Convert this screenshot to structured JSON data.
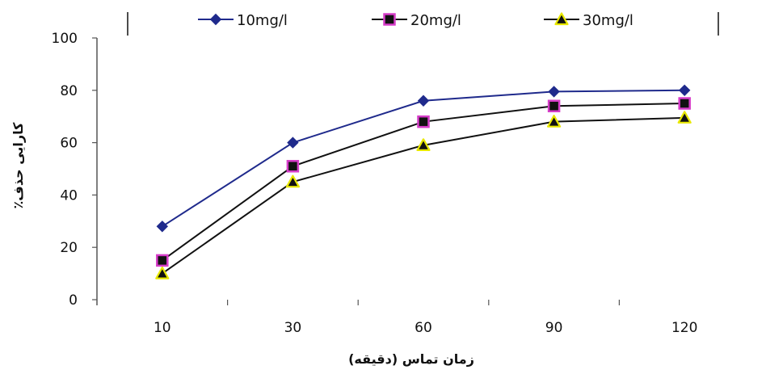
{
  "chart_data": {
    "type": "line",
    "title": "",
    "xlabel": "زمان تماس (دقیقه)",
    "ylabel": "کارایی حذف٪",
    "categories": [
      "10",
      "30",
      "60",
      "90",
      "120"
    ],
    "ylim": [
      0,
      100
    ],
    "yticks": [
      "0",
      "20",
      "40",
      "60",
      "80",
      "100"
    ],
    "grid": false,
    "legend_position": "top",
    "series": [
      {
        "name": "10mg/l",
        "values": [
          28,
          60,
          76,
          79.5,
          80
        ],
        "color": "#1f2a8c",
        "marker": "diamond",
        "marker_fill": "#1f2a8c",
        "marker_stroke": "#1f2a8c"
      },
      {
        "name": "20mg/l",
        "values": [
          15,
          51,
          68,
          74,
          75
        ],
        "color": "#111111",
        "marker": "square",
        "marker_fill": "#111111",
        "marker_stroke": "#d63cc8"
      },
      {
        "name": "30mg/l",
        "values": [
          10,
          45,
          59,
          68,
          69.5
        ],
        "color": "#111111",
        "marker": "triangle",
        "marker_fill": "#111111",
        "marker_stroke": "#e8e800"
      }
    ]
  }
}
